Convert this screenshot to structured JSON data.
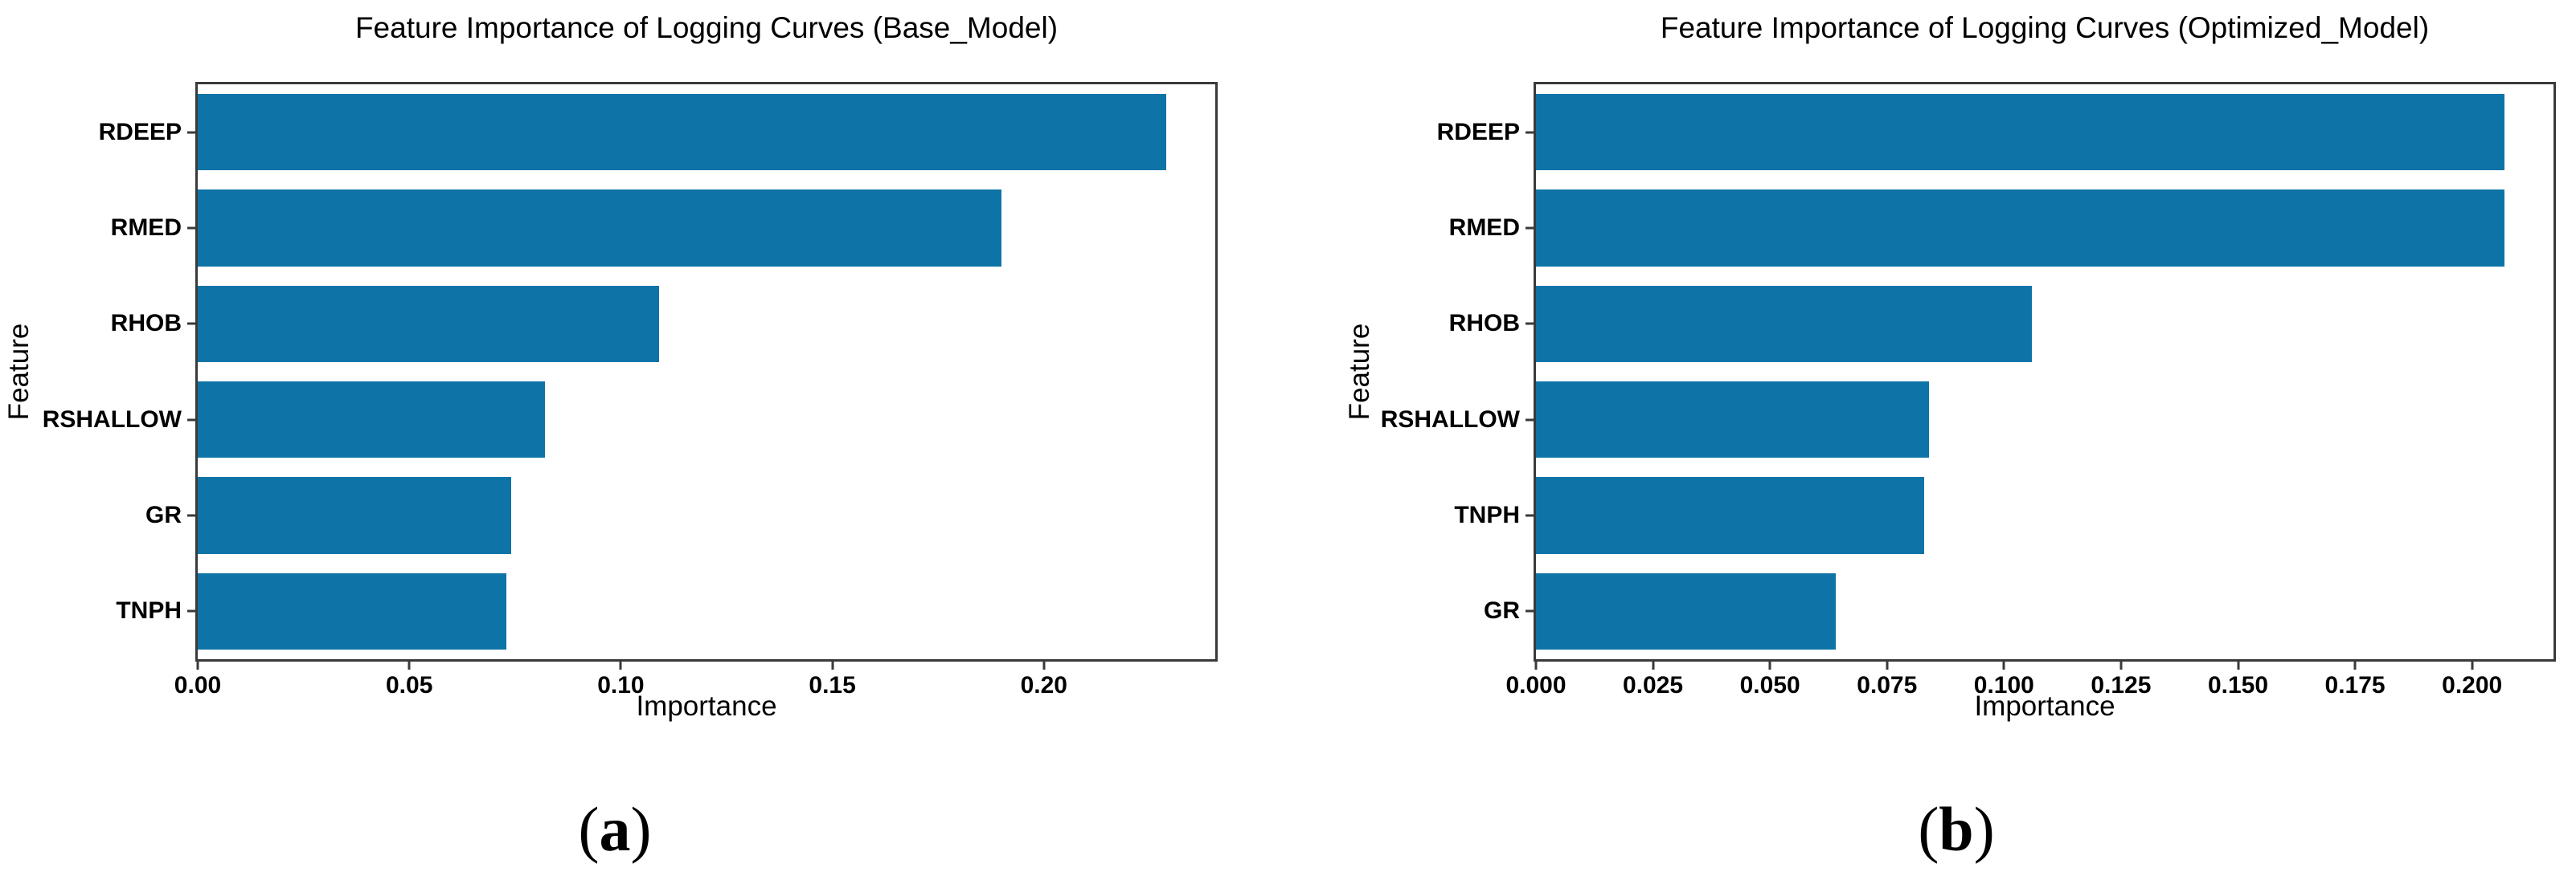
{
  "colors": {
    "bar": "#0e74a7",
    "axis": "#3a3a3a",
    "text": "#000000",
    "background": "#ffffff"
  },
  "captions": [
    {
      "open": "(",
      "letter": "a",
      "close": ")"
    },
    {
      "open": "(",
      "letter": "b",
      "close": ")"
    }
  ],
  "chart_data": [
    {
      "type": "bar",
      "orientation": "horizontal",
      "title": "Feature Importance of Logging Curves (Base_Model)",
      "xlabel": "Importance",
      "ylabel": "Feature",
      "categories": [
        "RDEEP",
        "RMED",
        "RHOB",
        "RSHALLOW",
        "GR",
        "TNPH"
      ],
      "values": [
        0.229,
        0.19,
        0.109,
        0.082,
        0.074,
        0.073
      ],
      "xlim": [
        0,
        0.2405
      ],
      "xticks": [
        0.0,
        0.05,
        0.1,
        0.15,
        0.2
      ],
      "xtick_labels": [
        "0.00",
        "0.05",
        "0.10",
        "0.15",
        "0.20"
      ],
      "bar_color": "#0e74a7",
      "grid": "off",
      "legend": "none"
    },
    {
      "type": "bar",
      "orientation": "horizontal",
      "title": "Feature Importance of Logging Curves (Optimized_Model)",
      "xlabel": "Importance",
      "ylabel": "Feature",
      "categories": [
        "RDEEP",
        "RMED",
        "RHOB",
        "RSHALLOW",
        "TNPH",
        "GR"
      ],
      "values": [
        0.207,
        0.207,
        0.106,
        0.084,
        0.083,
        0.064
      ],
      "xlim": [
        0,
        0.2174
      ],
      "xticks": [
        0.0,
        0.025,
        0.05,
        0.075,
        0.1,
        0.125,
        0.15,
        0.175,
        0.2
      ],
      "xtick_labels": [
        "0.000",
        "0.025",
        "0.050",
        "0.075",
        "0.100",
        "0.125",
        "0.150",
        "0.175",
        "0.200"
      ],
      "bar_color": "#0e74a7",
      "grid": "off",
      "legend": "none"
    }
  ]
}
